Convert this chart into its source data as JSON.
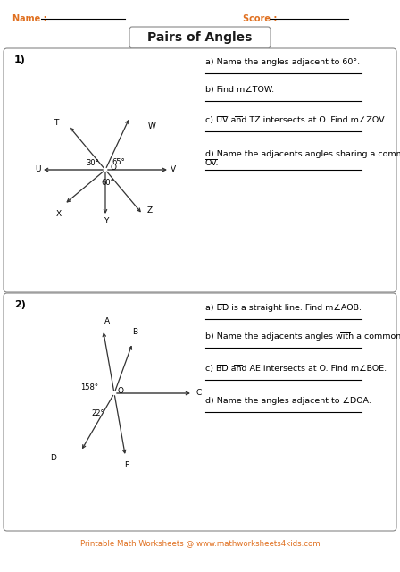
{
  "title": "Pairs of Angles",
  "name_label": "Name :",
  "score_label": "Score :",
  "bg_color": "#ffffff",
  "orange_color": "#e07020",
  "black_color": "#000000",
  "gray_color": "#666666",
  "q1_number": "1)",
  "q1_questions": [
    "a) Name the angles adjacent to 60°.",
    "b) Find m∠TOW.",
    "c) UV and TZ intersects at O. Find m∠ZOV.",
    "d) Name the adjacents angles sharing a common side"
  ],
  "q1_d_line2": "OV.",
  "q2_number": "2)",
  "q2_questions": [
    "a) BD is a straight line. Find m∠AOB.",
    "b) Name the adjacents angles with a common side OB.",
    "c) BD and AE intersects at O. Find m∠BOE.",
    "d) Name the angles adjacent to ∠DOA."
  ],
  "footer": "Printable Math Worksheets @ www.mathworksheets4kids.com"
}
